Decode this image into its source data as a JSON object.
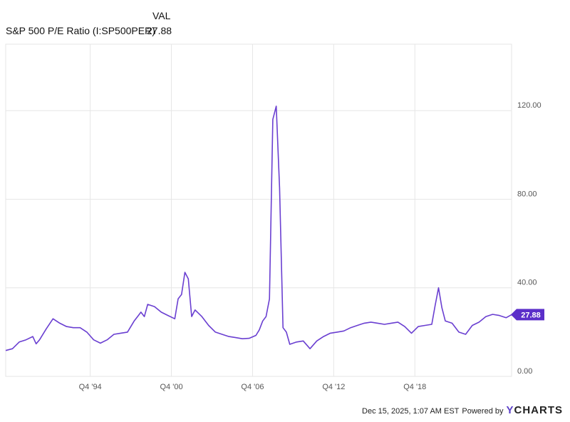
{
  "legend": {
    "value_header": "VAL",
    "series_name": "S&P 500 P/E Ratio (I:SP500PER)",
    "series_value": "27.88"
  },
  "footer": {
    "timestamp": "Dec 15, 2025, 1:07 AM EST",
    "powered_by": "Powered by",
    "brand_y": "Y",
    "brand_rest": "CHARTS"
  },
  "colors": {
    "series": "#6a3fd1",
    "grid": "#e6e6e6",
    "label_bg": "#5b2fc9"
  },
  "chart_data": {
    "type": "line",
    "title": "",
    "xlabel": "",
    "ylabel": "",
    "x_tick_labels": [
      "Q4 '94",
      "Q4 '00",
      "Q4 '06",
      "Q4 '12",
      "Q4 '18"
    ],
    "x_tick_years": [
      1994.75,
      2000.75,
      2006.75,
      2012.75,
      2018.75
    ],
    "xlim": [
      1988.5,
      2025.9
    ],
    "ylim": [
      0,
      150
    ],
    "y_ticks": [
      0,
      40,
      80,
      120
    ],
    "y_tick_labels": [
      "0.00",
      "40.00",
      "80.00",
      "120.00"
    ],
    "grid": true,
    "last_value_label": "27.88",
    "series": [
      {
        "name": "S&P 500 P/E Ratio (I:SP500PER)",
        "x": [
          1988.5,
          1989.0,
          1989.5,
          1990.0,
          1990.5,
          1990.75,
          1991.0,
          1991.5,
          1992.0,
          1992.5,
          1993.0,
          1993.5,
          1994.0,
          1994.5,
          1995.0,
          1995.5,
          1996.0,
          1996.5,
          1997.0,
          1997.5,
          1998.0,
          1998.25,
          1998.5,
          1998.75,
          1999.0,
          1999.5,
          2000.0,
          2000.5,
          2001.0,
          2001.25,
          2001.5,
          2001.75,
          2002.0,
          2002.25,
          2002.5,
          2003.0,
          2003.5,
          2004.0,
          2004.5,
          2005.0,
          2005.5,
          2006.0,
          2006.5,
          2007.0,
          2007.25,
          2007.5,
          2007.75,
          2008.0,
          2008.25,
          2008.5,
          2008.75,
          2009.0,
          2009.25,
          2009.5,
          2010.0,
          2010.5,
          2011.0,
          2011.5,
          2012.0,
          2012.5,
          2013.0,
          2013.5,
          2014.0,
          2014.5,
          2015.0,
          2015.5,
          2016.0,
          2016.5,
          2017.0,
          2017.5,
          2018.0,
          2018.5,
          2019.0,
          2019.5,
          2020.0,
          2020.25,
          2020.5,
          2020.75,
          2021.0,
          2021.5,
          2022.0,
          2022.5,
          2023.0,
          2023.5,
          2024.0,
          2024.5,
          2025.0,
          2025.5,
          2025.9
        ],
        "values": [
          11.7,
          12.5,
          15.5,
          16.5,
          18.0,
          14.7,
          16.5,
          21.5,
          26.0,
          24.0,
          22.5,
          22.0,
          22.0,
          20.0,
          16.5,
          15.0,
          16.5,
          19.0,
          19.5,
          20.0,
          25.0,
          27.0,
          29.0,
          27.0,
          32.5,
          31.5,
          29.0,
          27.5,
          26.0,
          35.0,
          37.0,
          47.0,
          44.0,
          27.0,
          30.0,
          27.0,
          23.0,
          20.0,
          19.0,
          18.0,
          17.5,
          17.0,
          17.2,
          18.5,
          21.0,
          25.0,
          27.0,
          35.0,
          116.0,
          122.0,
          85.0,
          22.0,
          20.0,
          14.5,
          15.5,
          16.0,
          12.5,
          16.0,
          18.0,
          19.5,
          20.0,
          20.5,
          22.0,
          23.0,
          24.0,
          24.5,
          24.0,
          23.5,
          24.0,
          24.5,
          22.5,
          19.5,
          22.5,
          23.0,
          23.5,
          32.0,
          40.0,
          31.0,
          25.0,
          24.0,
          20.0,
          19.0,
          23.0,
          24.5,
          27.0,
          28.0,
          27.5,
          26.5,
          27.88
        ]
      }
    ]
  }
}
